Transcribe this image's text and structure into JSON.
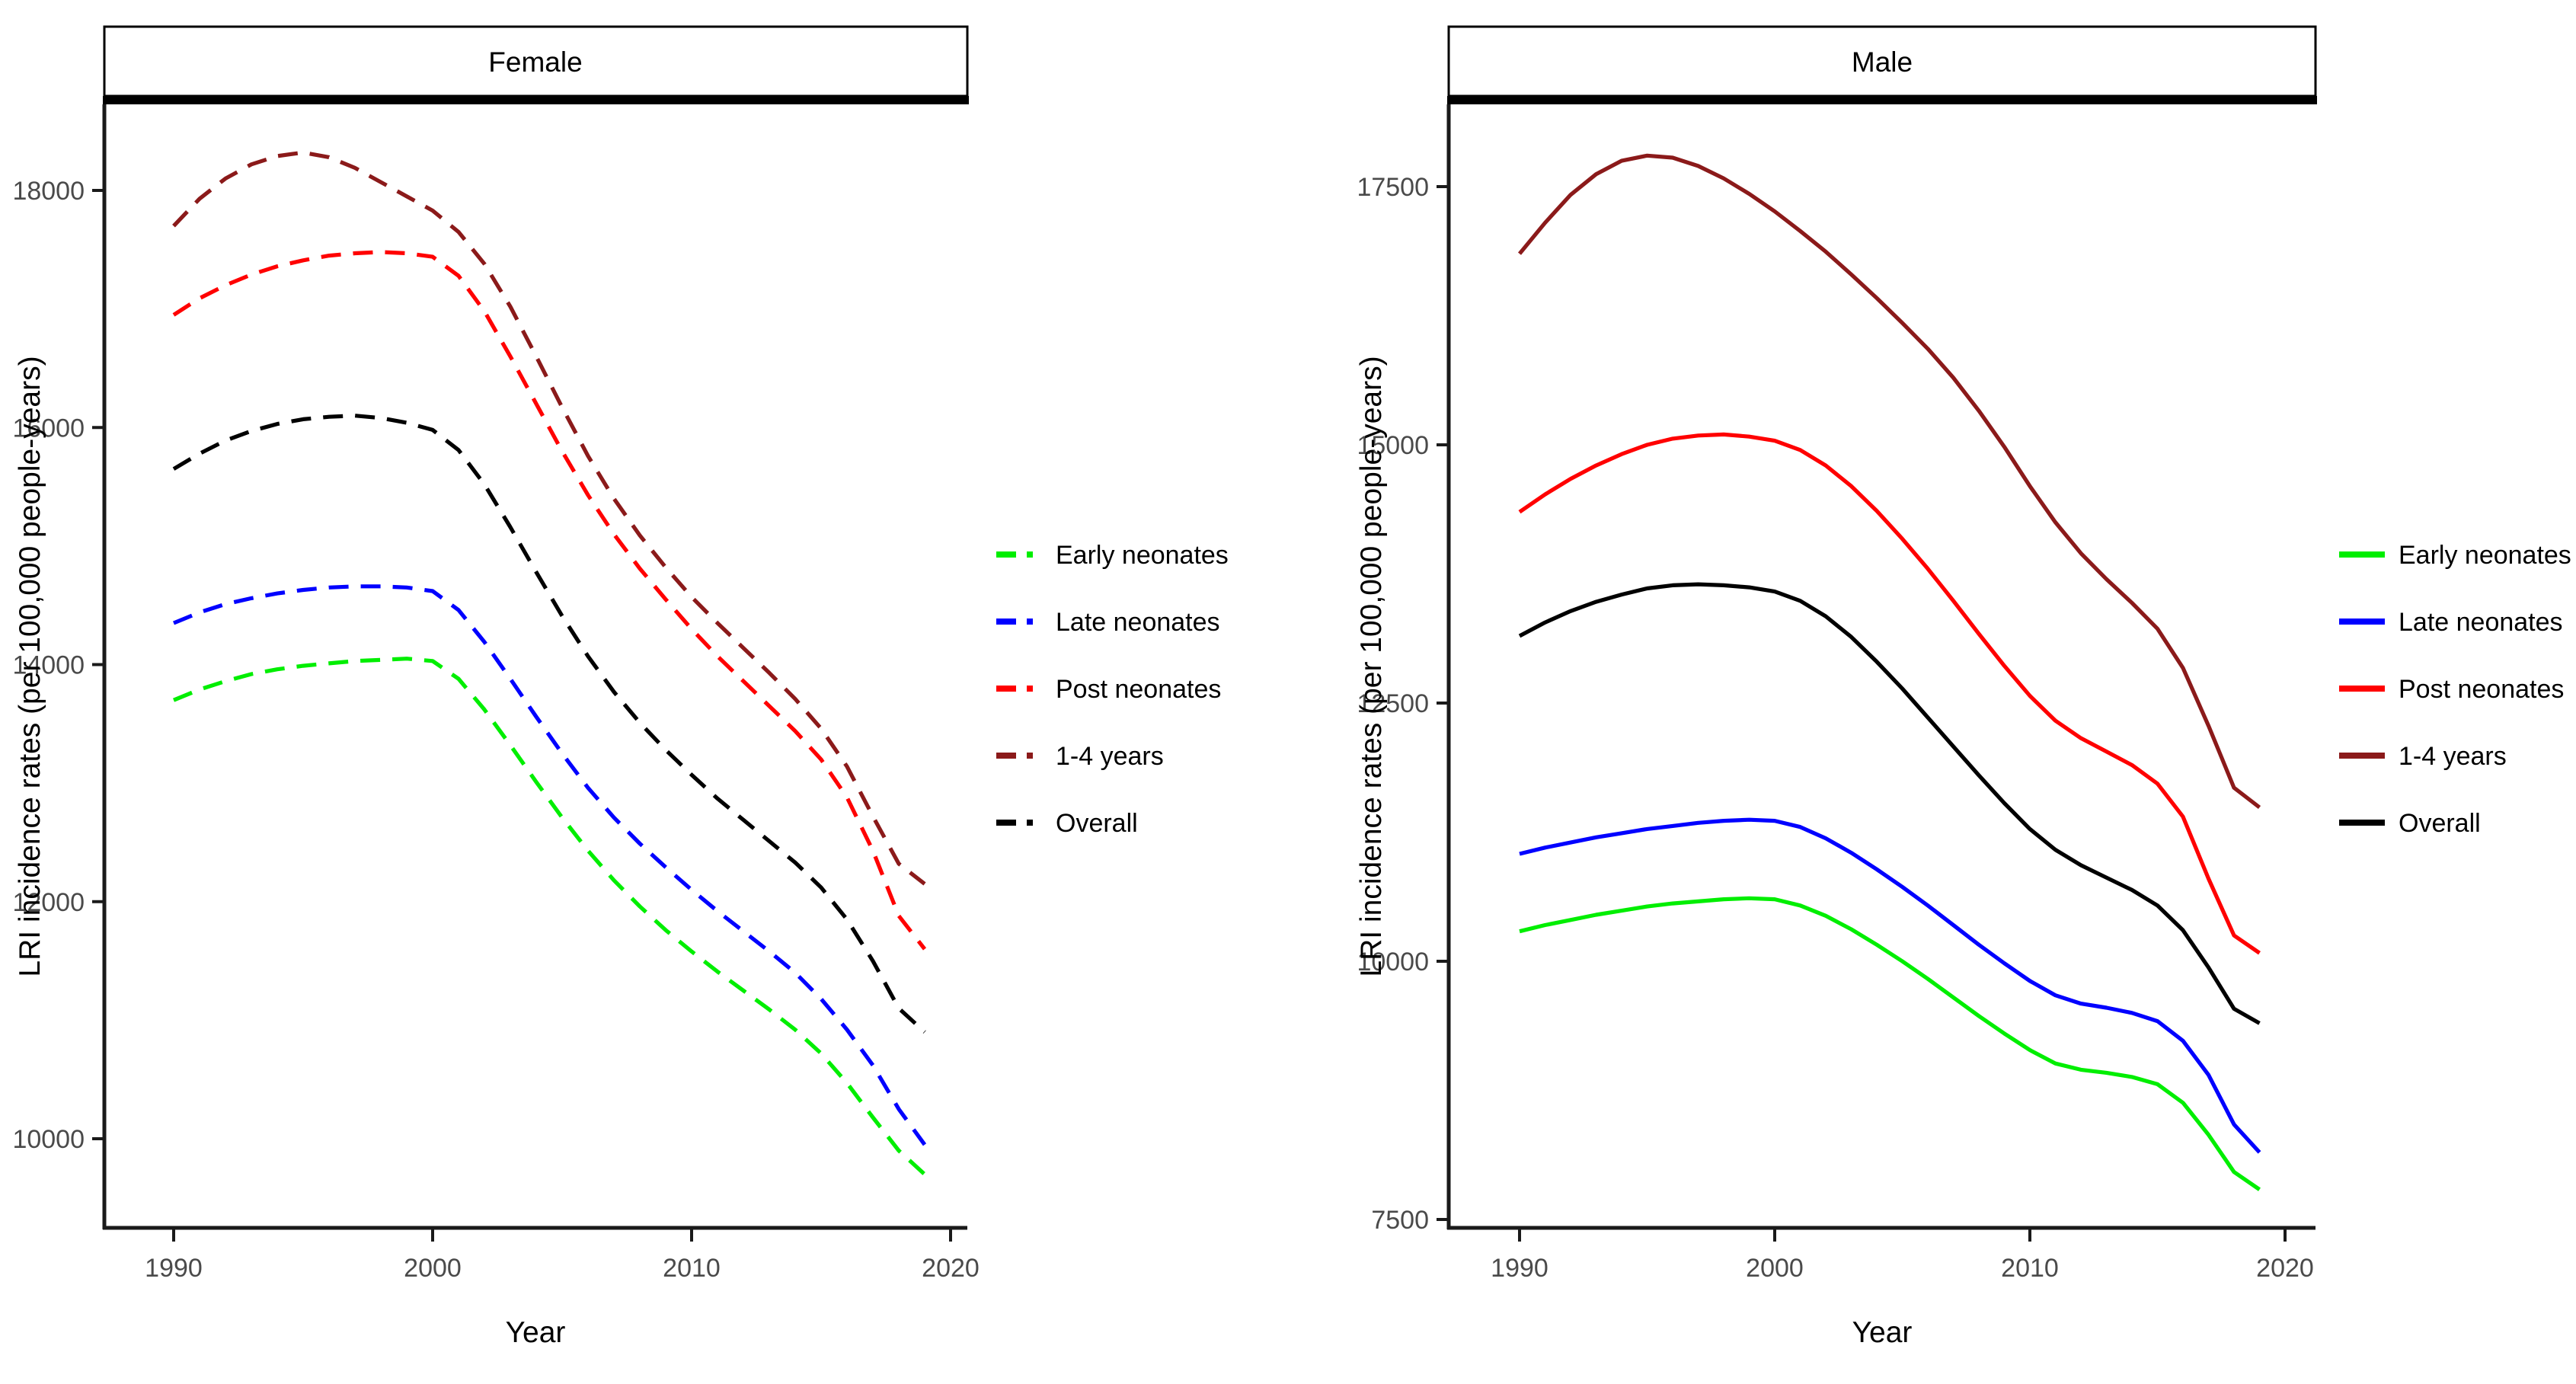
{
  "figure": {
    "background": "#ffffff",
    "x_axis_title": "Year",
    "y_axis_title": "LRI incidence rates (per 100,000 people-years)"
  },
  "chart_data": {
    "type": "line",
    "grid": false,
    "legend_position": "right-of-each-panel",
    "x_label": "Year",
    "y_label": "LRI incidence rates (per 100,000 people-years)",
    "x": [
      1990,
      1991,
      1992,
      1993,
      1994,
      1995,
      1996,
      1997,
      1998,
      1999,
      2000,
      2001,
      2002,
      2003,
      2004,
      2005,
      2006,
      2007,
      2008,
      2009,
      2010,
      2011,
      2012,
      2013,
      2014,
      2015,
      2016,
      2017,
      2018,
      2019
    ],
    "x_ticks": [
      1990,
      2000,
      2010,
      2020
    ],
    "panels": [
      {
        "title": "Female",
        "line_style": "dashed",
        "y_ticks": [
          10000,
          12000,
          14000,
          16000,
          18000
        ],
        "ylim": [
          9300,
          18700
        ],
        "xlim": [
          1989,
          2021
        ],
        "series": [
          {
            "name": "Early neonates",
            "color": "#00EE00",
            "values": [
              13700,
              13790,
              13860,
              13920,
              13960,
              13990,
              14010,
              14030,
              14040,
              14050,
              14030,
              13880,
              13620,
              13320,
              13010,
              12710,
              12430,
              12180,
              11960,
              11760,
              11580,
              11410,
              11250,
              11090,
              10920,
              10720,
              10470,
              10180,
              9900,
              9700
            ]
          },
          {
            "name": "Late neonates",
            "color": "#0000FF",
            "values": [
              14350,
              14440,
              14510,
              14560,
              14600,
              14630,
              14650,
              14660,
              14660,
              14650,
              14620,
              14460,
              14190,
              13880,
              13560,
              13250,
              12960,
              12710,
              12490,
              12290,
              12100,
              11920,
              11750,
              11580,
              11400,
              11180,
              10920,
              10620,
              10250,
              9950
            ]
          },
          {
            "name": "Post neonates",
            "color": "#FF0000",
            "values": [
              16950,
              17090,
              17200,
              17290,
              17360,
              17410,
              17450,
              17470,
              17480,
              17470,
              17440,
              17280,
              16980,
              16600,
              16200,
              15800,
              15430,
              15100,
              14810,
              14550,
              14300,
              14070,
              13860,
              13650,
              13440,
              13200,
              12880,
              12430,
              11880,
              11600
            ]
          },
          {
            "name": "1-4 years",
            "color": "#8B1A1A",
            "values": [
              17700,
              17930,
              18100,
              18220,
              18290,
              18320,
              18280,
              18190,
              18070,
              17950,
              17830,
              17650,
              17380,
              17020,
              16600,
              16170,
              15760,
              15400,
              15090,
              14820,
              14570,
              14350,
              14140,
              13930,
              13710,
              13460,
              13140,
              12720,
              12320,
              12150
            ]
          },
          {
            "name": "Overall",
            "color": "#000000",
            "values": [
              15650,
              15780,
              15890,
              15970,
              16030,
              16070,
              16090,
              16100,
              16080,
              16040,
              15980,
              15810,
              15520,
              15160,
              14780,
              14410,
              14070,
              13770,
              13510,
              13280,
              13070,
              12870,
              12690,
              12510,
              12330,
              12120,
              11850,
              11500,
              11100,
              10900
            ]
          }
        ]
      },
      {
        "title": "Male",
        "line_style": "solid",
        "y_ticks": [
          7500,
          10000,
          12500,
          15000,
          17500
        ],
        "ylim": [
          7300,
          18300
        ],
        "xlim": [
          1989,
          2021
        ],
        "series": [
          {
            "name": "Early neonates",
            "color": "#00EE00",
            "values": [
              10290,
              10350,
              10400,
              10450,
              10490,
              10530,
              10560,
              10580,
              10600,
              10610,
              10600,
              10540,
              10440,
              10310,
              10160,
              10000,
              9830,
              9650,
              9470,
              9300,
              9140,
              9010,
              8950,
              8920,
              8880,
              8810,
              8630,
              8320,
              7960,
              7790
            ]
          },
          {
            "name": "Late neonates",
            "color": "#0000FF",
            "values": [
              11040,
              11100,
              11150,
              11200,
              11240,
              11280,
              11310,
              11340,
              11360,
              11370,
              11360,
              11300,
              11190,
              11050,
              10890,
              10720,
              10540,
              10350,
              10160,
              9980,
              9810,
              9670,
              9590,
              9550,
              9500,
              9420,
              9230,
              8900,
              8420,
              8150
            ]
          },
          {
            "name": "Post neonates",
            "color": "#FF0000",
            "values": [
              14350,
              14520,
              14670,
              14800,
              14910,
              15000,
              15060,
              15090,
              15100,
              15080,
              15040,
              14950,
              14800,
              14600,
              14360,
              14090,
              13800,
              13490,
              13170,
              12860,
              12570,
              12330,
              12160,
              12030,
              11900,
              11720,
              11400,
              10800,
              10250,
              10080
            ]
          },
          {
            "name": "1-4 years",
            "color": "#8B1A1A",
            "values": [
              16850,
              17150,
              17420,
              17620,
              17750,
              17800,
              17780,
              17700,
              17580,
              17430,
              17260,
              17070,
              16870,
              16650,
              16420,
              16180,
              15930,
              15650,
              15330,
              14980,
              14600,
              14250,
              13950,
              13700,
              13470,
              13220,
              12840,
              12280,
              11680,
              11490
            ]
          },
          {
            "name": "Overall",
            "color": "#000000",
            "values": [
              13150,
              13280,
              13390,
              13480,
              13550,
              13610,
              13640,
              13650,
              13640,
              13620,
              13580,
              13490,
              13340,
              13140,
              12900,
              12640,
              12360,
              12080,
              11800,
              11530,
              11280,
              11080,
              10930,
              10810,
              10690,
              10540,
              10300,
              9940,
              9540,
              9400
            ]
          }
        ]
      }
    ]
  }
}
